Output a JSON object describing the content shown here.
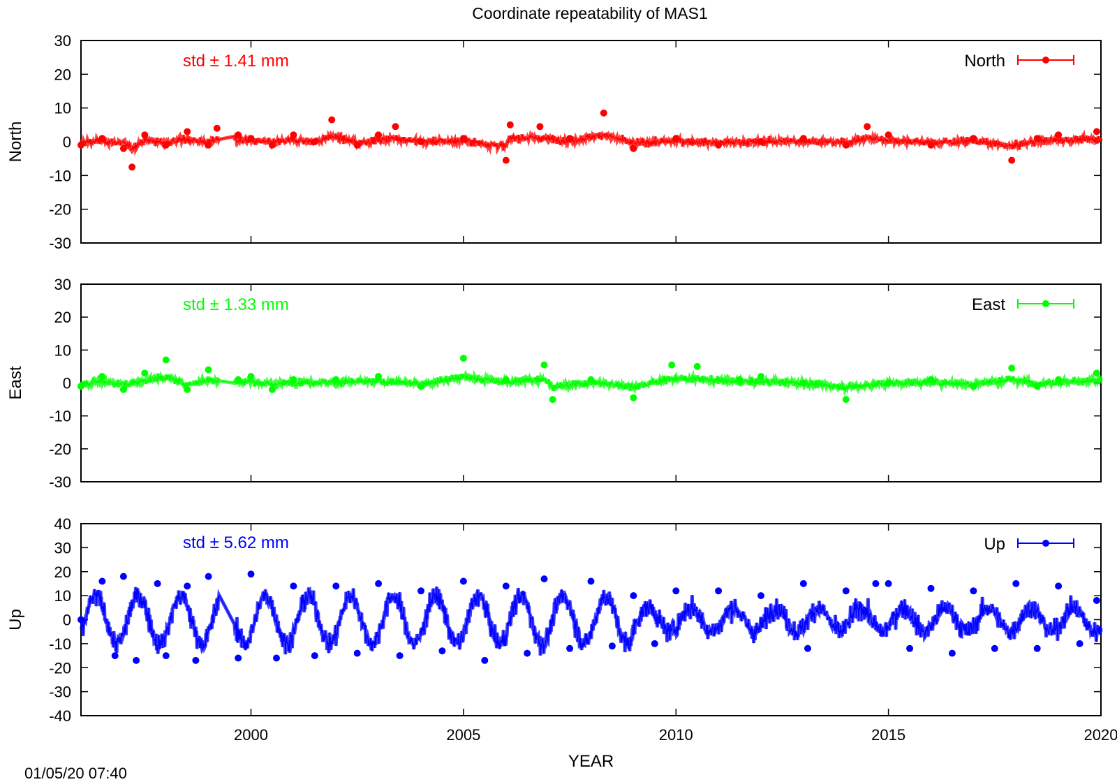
{
  "title": "Coordinate repeatability of MAS1",
  "timestamp": "01/05/20 07:40",
  "chart_data": [
    {
      "type": "line",
      "name": "North",
      "ylabel": "North",
      "ylim": [
        -30,
        30
      ],
      "yticks": [
        30,
        20,
        10,
        0,
        -10,
        -20,
        -30
      ],
      "color": "#ff0000",
      "std_label": "std ± 1.41 mm",
      "legend_label": "North",
      "legend_position": "top-right",
      "xlim": [
        1996,
        2020
      ],
      "approx_points": [
        [
          1996.0,
          -1
        ],
        [
          1996.5,
          1
        ],
        [
          1997.0,
          -2
        ],
        [
          1997.2,
          -7.5
        ],
        [
          1997.5,
          2
        ],
        [
          1998.0,
          -1
        ],
        [
          1998.5,
          3
        ],
        [
          1999.0,
          -1
        ],
        [
          1999.2,
          4
        ],
        [
          1999.7,
          2
        ],
        [
          2000.0,
          1
        ],
        [
          2000.5,
          -1
        ],
        [
          2001.0,
          2
        ],
        [
          2001.5,
          0
        ],
        [
          2001.9,
          6.5
        ],
        [
          2002.5,
          -1
        ],
        [
          2003.0,
          2
        ],
        [
          2003.4,
          4.5
        ],
        [
          2004.0,
          0
        ],
        [
          2005.0,
          1
        ],
        [
          2006.0,
          -5.5
        ],
        [
          2006.1,
          5
        ],
        [
          2006.8,
          4.5
        ],
        [
          2007.5,
          1
        ],
        [
          2008.3,
          8.5
        ],
        [
          2009.0,
          -2
        ],
        [
          2010.0,
          1
        ],
        [
          2011.0,
          -1
        ],
        [
          2012.0,
          0
        ],
        [
          2013.0,
          1
        ],
        [
          2014.0,
          -1
        ],
        [
          2014.5,
          4.5
        ],
        [
          2015.0,
          2
        ],
        [
          2016.0,
          -1
        ],
        [
          2017.0,
          1
        ],
        [
          2017.9,
          -5.5
        ],
        [
          2018.5,
          1
        ],
        [
          2019.0,
          2
        ],
        [
          2019.9,
          3
        ]
      ]
    },
    {
      "type": "line",
      "name": "East",
      "ylabel": "East",
      "ylim": [
        -30,
        30
      ],
      "yticks": [
        30,
        20,
        10,
        0,
        -10,
        -20,
        -30
      ],
      "color": "#00ff00",
      "std_label": "std ± 1.33 mm",
      "legend_label": "East",
      "legend_position": "top-right",
      "xlim": [
        1996,
        2020
      ],
      "approx_points": [
        [
          1996.0,
          -1
        ],
        [
          1996.5,
          2
        ],
        [
          1997.0,
          -2
        ],
        [
          1997.5,
          3
        ],
        [
          1998.0,
          7
        ],
        [
          1998.5,
          -2
        ],
        [
          1999.0,
          4
        ],
        [
          1999.7,
          1
        ],
        [
          2000.0,
          2
        ],
        [
          2000.5,
          -2
        ],
        [
          2001.0,
          1
        ],
        [
          2002.0,
          1
        ],
        [
          2003.0,
          2
        ],
        [
          2004.0,
          -1
        ],
        [
          2005.0,
          7.5
        ],
        [
          2006.0,
          1
        ],
        [
          2006.9,
          5.5
        ],
        [
          2007.1,
          -5
        ],
        [
          2008.0,
          1
        ],
        [
          2009.0,
          -4.5
        ],
        [
          2009.9,
          5.5
        ],
        [
          2010.5,
          5
        ],
        [
          2011.5,
          1
        ],
        [
          2012.0,
          2
        ],
        [
          2013.0,
          0
        ],
        [
          2014.0,
          -5
        ],
        [
          2015.0,
          0
        ],
        [
          2016.0,
          1
        ],
        [
          2017.0,
          -1
        ],
        [
          2017.9,
          4.5
        ],
        [
          2018.5,
          -1
        ],
        [
          2019.0,
          1
        ],
        [
          2019.9,
          3
        ]
      ]
    },
    {
      "type": "line",
      "name": "Up",
      "ylabel": "Up",
      "ylim": [
        -40,
        40
      ],
      "yticks": [
        40,
        30,
        20,
        10,
        0,
        -10,
        -20,
        -30,
        -40
      ],
      "color": "#0000ff",
      "std_label": "std ± 5.62 mm",
      "legend_label": "Up",
      "legend_position": "top-right",
      "xlim": [
        1996,
        2020
      ],
      "xticks": [
        2000,
        2005,
        2010,
        2015,
        2020
      ],
      "xlabel": "YEAR",
      "approx_points": [
        [
          1996.0,
          0
        ],
        [
          1996.5,
          16
        ],
        [
          1996.8,
          -15
        ],
        [
          1997.0,
          18
        ],
        [
          1997.3,
          -17
        ],
        [
          1997.8,
          15
        ],
        [
          1998.0,
          -15
        ],
        [
          1998.5,
          14
        ],
        [
          1998.7,
          -17
        ],
        [
          1999.0,
          18
        ],
        [
          1999.7,
          -16
        ],
        [
          2000.0,
          19
        ],
        [
          2000.6,
          -16
        ],
        [
          2001.0,
          14
        ],
        [
          2001.5,
          -15
        ],
        [
          2002.0,
          14
        ],
        [
          2002.5,
          -14
        ],
        [
          2003.0,
          15
        ],
        [
          2003.5,
          -15
        ],
        [
          2004.0,
          12
        ],
        [
          2004.5,
          -13
        ],
        [
          2005.0,
          16
        ],
        [
          2005.5,
          -17
        ],
        [
          2006.0,
          14
        ],
        [
          2006.5,
          -14
        ],
        [
          2006.9,
          17
        ],
        [
          2007.5,
          -12
        ],
        [
          2008.0,
          16
        ],
        [
          2008.5,
          -11
        ],
        [
          2009.0,
          10
        ],
        [
          2009.5,
          -10
        ],
        [
          2010.0,
          12
        ],
        [
          2011.0,
          12
        ],
        [
          2012.0,
          10
        ],
        [
          2013.0,
          15
        ],
        [
          2013.1,
          -12
        ],
        [
          2014.0,
          12
        ],
        [
          2014.7,
          15
        ],
        [
          2015.0,
          15
        ],
        [
          2015.5,
          -12
        ],
        [
          2016.0,
          13
        ],
        [
          2016.5,
          -14
        ],
        [
          2017.0,
          12
        ],
        [
          2017.5,
          -12
        ],
        [
          2018.0,
          15
        ],
        [
          2018.5,
          -12
        ],
        [
          2019.0,
          14
        ],
        [
          2019.5,
          -10
        ],
        [
          2019.9,
          8
        ]
      ]
    }
  ]
}
